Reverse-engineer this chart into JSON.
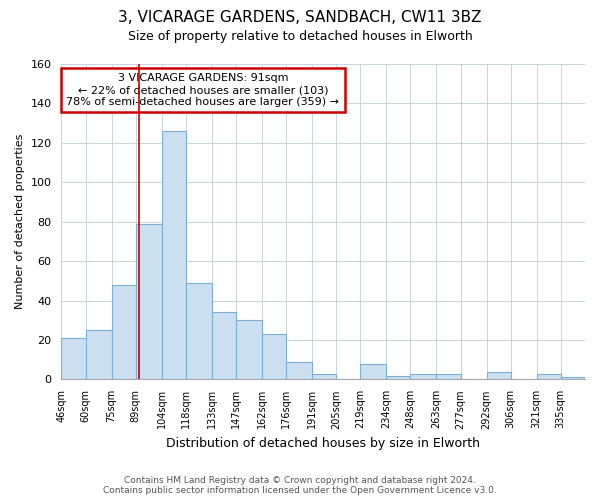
{
  "title": "3, VICARAGE GARDENS, SANDBACH, CW11 3BZ",
  "subtitle": "Size of property relative to detached houses in Elworth",
  "xlabel": "Distribution of detached houses by size in Elworth",
  "ylabel": "Number of detached properties",
  "bar_labels": [
    "46sqm",
    "60sqm",
    "75sqm",
    "89sqm",
    "104sqm",
    "118sqm",
    "133sqm",
    "147sqm",
    "162sqm",
    "176sqm",
    "191sqm",
    "205sqm",
    "219sqm",
    "234sqm",
    "248sqm",
    "263sqm",
    "277sqm",
    "292sqm",
    "306sqm",
    "321sqm",
    "335sqm"
  ],
  "bar_values": [
    21,
    25,
    48,
    79,
    126,
    49,
    34,
    30,
    23,
    9,
    3,
    0,
    8,
    2,
    3,
    3,
    0,
    4,
    0,
    3,
    1
  ],
  "bar_fill_color": "#ccdff0",
  "bar_edge_color": "#7bafd4",
  "ylim": [
    0,
    160
  ],
  "yticks": [
    0,
    20,
    40,
    60,
    80,
    100,
    120,
    140,
    160
  ],
  "property_sqm": 91,
  "property_line_color": "#cc0000",
  "annotation_line1": "3 VICARAGE GARDENS: 91sqm",
  "annotation_line2": "← 22% of detached houses are smaller (103)",
  "annotation_line3": "78% of semi-detached houses are larger (359) →",
  "annotation_box_color": "#ffffff",
  "annotation_border_color": "#cc0000",
  "footer_line1": "Contains HM Land Registry data © Crown copyright and database right 2024.",
  "footer_line2": "Contains public sector information licensed under the Open Government Licence v3.0.",
  "grid_color": "#c8d4e0",
  "background_color": "#ffffff",
  "bin_edges": [
    46,
    60,
    75,
    89,
    104,
    118,
    133,
    147,
    162,
    176,
    191,
    205,
    219,
    234,
    248,
    263,
    277,
    292,
    306,
    321,
    335,
    349
  ]
}
